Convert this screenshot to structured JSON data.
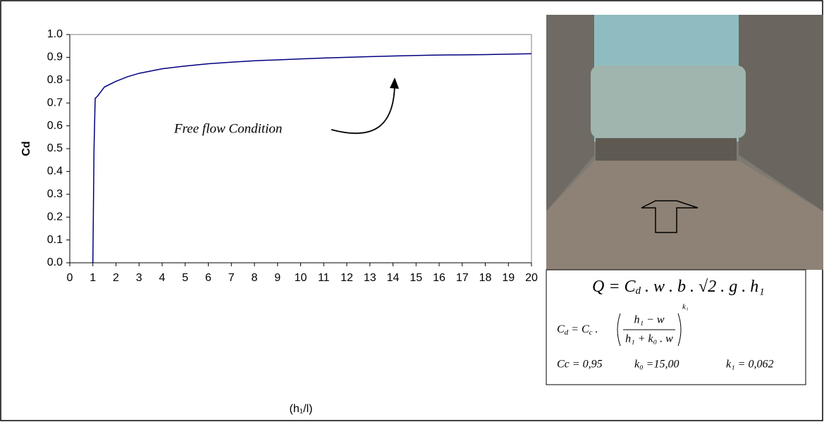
{
  "chart_data": {
    "type": "line",
    "annotation": "Free flow Condition",
    "xlabel": "(h₁/l)",
    "ylabel": "Cd",
    "xlim": [
      0,
      20
    ],
    "xticks": [
      0,
      1,
      2,
      3,
      4,
      5,
      6,
      7,
      8,
      9,
      10,
      11,
      12,
      13,
      14,
      15,
      16,
      17,
      18,
      19,
      20
    ],
    "ylim": [
      0,
      1
    ],
    "yticks": [
      {
        "value": 0,
        "label": "0.0"
      },
      0.1,
      0.2,
      0.3,
      0.4,
      0.5,
      0.6,
      0.7,
      0.8,
      0.9,
      {
        "value": 1,
        "label": "1.0"
      }
    ],
    "grid": false,
    "color": "#000080",
    "x": [
      1,
      1.02,
      1.05,
      1.1,
      1.2,
      1.5,
      2,
      2.5,
      3,
      3.5,
      4,
      5,
      6,
      7,
      8,
      9,
      10,
      11,
      12,
      13,
      14,
      15,
      16,
      17,
      18,
      19,
      20
    ],
    "values": [
      0,
      0.2,
      0.5,
      0.72,
      0.73,
      0.77,
      0.795,
      0.815,
      0.83,
      0.84,
      0.85,
      0.862,
      0.872,
      0.879,
      0.885,
      0.889,
      0.893,
      0.897,
      0.9,
      0.903,
      0.906,
      0.908,
      0.91,
      0.911,
      0.912,
      0.914,
      0.916
    ]
  },
  "formulas": {
    "discharge": {
      "left": "Q = C",
      "sub": "d",
      "right": " . w . b . √2 . g . h₁"
    },
    "coefficient": {
      "left": "C",
      "sub": "d",
      "mid": " = C",
      "sub2": "c",
      "dot": " .",
      "numerator": "h₁ − w",
      "denominator": "h₁ + k₀ . w",
      "exponent": "k₁"
    },
    "constants": [
      "Cc = 0,95",
      "k₀ =15,00",
      "k₁ = 0,062"
    ]
  }
}
